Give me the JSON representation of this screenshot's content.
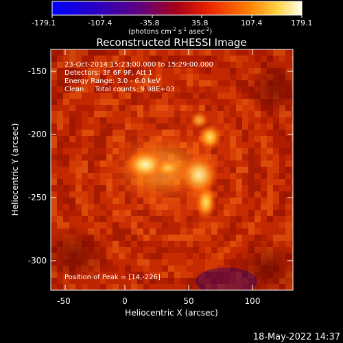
{
  "colorbar": {
    "ticks": [
      "-179.1",
      "-107.4",
      "-35.8",
      "35.8",
      "107.4",
      "179.1"
    ],
    "units_prefix": "(photons cm",
    "units_exp1": "-2",
    "units_mid": " s",
    "units_exp2": "-1",
    "units_mid2": " asec",
    "units_exp3": "-2",
    "units_suffix": ")"
  },
  "title": "Reconstructed RHESSI Image",
  "info": {
    "line1": "23-Oct-2014 15:23:00.000 to 15:29:00.000",
    "line2": "Detectors: 3F 6F 9F, Att 1",
    "line3": "Energy Range: 3.0 - 6.0 keV",
    "line4": "Clean     Total counts: 9.98E+03"
  },
  "peak": "Position of Peak = [14,-226]",
  "axes": {
    "xlabel": "Heliocentric X (arcsec)",
    "ylabel": "Heliocentric Y (arcsec)",
    "xticks": [
      "-50",
      "0",
      "50",
      "100"
    ],
    "yticks": [
      "-150",
      "-200",
      "-250",
      "-300"
    ]
  },
  "footer_date": "18-May-2022 14:37",
  "colors": {
    "background": "#000000",
    "image_base": "#c82800",
    "bright": "#fff0a0"
  }
}
